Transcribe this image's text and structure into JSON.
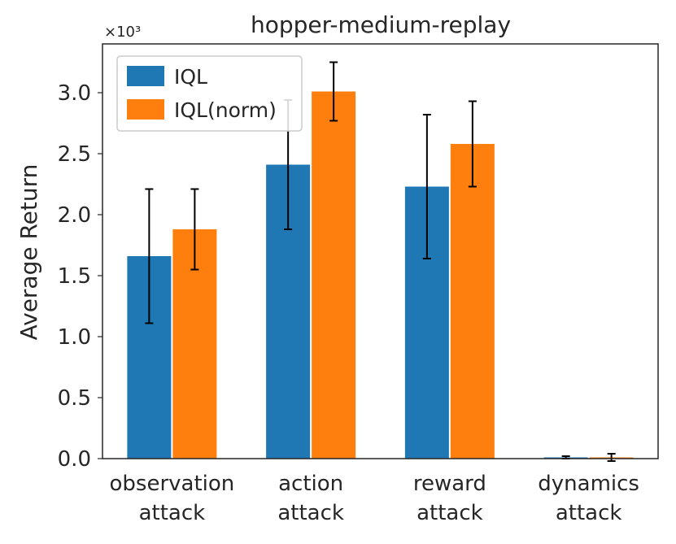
{
  "chart_data": {
    "type": "bar",
    "title": "hopper-medium-replay",
    "xlabel": "",
    "ylabel": "Average Return",
    "y_scale_label": "×10³",
    "y_multiplier": 1000,
    "ylim": [
      0,
      3.4
    ],
    "yticks": [
      "0.0",
      "0.5",
      "1.0",
      "1.5",
      "2.0",
      "2.5",
      "3.0"
    ],
    "ytick_values": [
      0,
      0.5,
      1.0,
      1.5,
      2.0,
      2.5,
      3.0
    ],
    "categories": [
      {
        "line1": "observation",
        "line2": "attack"
      },
      {
        "line1": "action",
        "line2": "attack"
      },
      {
        "line1": "reward",
        "line2": "attack"
      },
      {
        "line1": "dynamics",
        "line2": "attack"
      }
    ],
    "series": [
      {
        "name": "IQL",
        "color": "#1f77b4",
        "values": [
          1.66,
          2.41,
          2.23,
          0.01
        ],
        "errors": [
          0.55,
          0.53,
          0.59,
          0.01
        ]
      },
      {
        "name": "IQL(norm)",
        "color": "#ff7f0e",
        "values": [
          1.88,
          3.01,
          2.58,
          0.01
        ],
        "errors": [
          0.33,
          0.24,
          0.35,
          0.03
        ]
      }
    ],
    "legend": {
      "position": "top-left"
    },
    "grid": false
  }
}
